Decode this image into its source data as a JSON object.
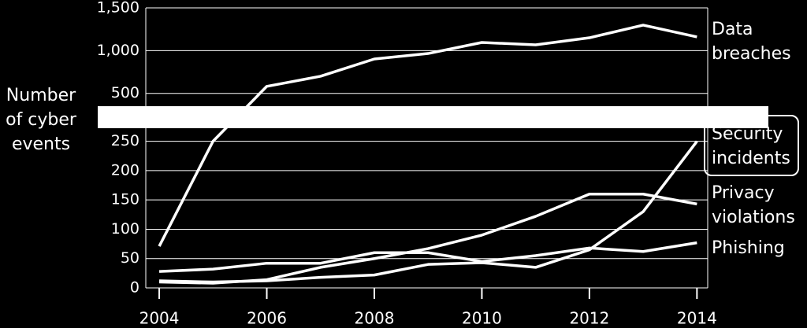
{
  "chart_data": {
    "type": "line",
    "y_label": "Number of cyber events",
    "x": [
      2004,
      2005,
      2006,
      2007,
      2008,
      2009,
      2010,
      2011,
      2012,
      2013,
      2014
    ],
    "xlim": [
      2003.75,
      2014.2
    ],
    "xticks": [
      2004,
      2006,
      2008,
      2010,
      2012,
      2014
    ],
    "broken_y_axis": [
      {
        "ylim": [
          0,
          275
        ],
        "yticks": [
          0,
          50,
          100,
          150,
          200,
          250
        ]
      },
      {
        "ylim": [
          350,
          1500
        ],
        "yticks": [
          500,
          {
            "value": 1000,
            "label": "1,000"
          },
          {
            "value": 1500,
            "label": "1,500"
          }
        ]
      }
    ],
    "grid": true,
    "series": [
      {
        "name": "Data breaches",
        "color": "#ffffff",
        "values": [
          71,
          250,
          582,
          700,
          902,
          966,
          1095,
          1068,
          1150,
          1298,
          1160
        ]
      },
      {
        "name": "Security incidents",
        "color": "#ffffff",
        "values": [
          12,
          10,
          12,
          18,
          22,
          40,
          43,
          35,
          65,
          130,
          250
        ]
      },
      {
        "name": "Privacy violations",
        "color": "#ffffff",
        "values": [
          10,
          8,
          14,
          35,
          50,
          67,
          90,
          122,
          160,
          160,
          143
        ]
      },
      {
        "name": "Phishing",
        "color": "#ffffff",
        "values": [
          28,
          32,
          42,
          42,
          60,
          60,
          45,
          55,
          68,
          62,
          77
        ]
      }
    ]
  }
}
